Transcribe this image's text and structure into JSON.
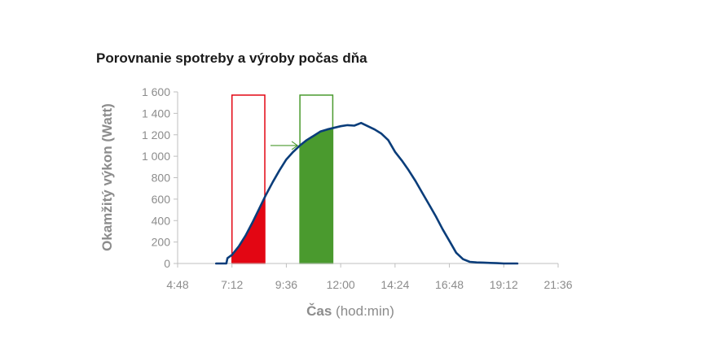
{
  "chart_data": {
    "type": "area",
    "title": "Porovnanie spotreby a výroby počas dňa",
    "xlabel_bold": "Čas",
    "xlabel_rest": " (hod:min)",
    "ylabel": "Okamžitý výkon (Watt)",
    "x_ticks": [
      "4:48",
      "7:12",
      "9:36",
      "12:00",
      "14:24",
      "16:48",
      "19:12",
      "21:36"
    ],
    "x_tick_hours": [
      4.8,
      7.2,
      9.6,
      12.0,
      14.4,
      16.8,
      19.2,
      21.6
    ],
    "y_ticks": [
      "0",
      "200",
      "400",
      "600",
      "800",
      "1 000",
      "1 200",
      "1 400",
      "1 600"
    ],
    "y_tick_values": [
      0,
      200,
      400,
      600,
      800,
      1000,
      1200,
      1400,
      1600
    ],
    "xlim_hours": [
      4.8,
      21.6
    ],
    "ylim": [
      0,
      1600
    ],
    "grid": false,
    "legend": "none",
    "series": [
      {
        "color": "#0a3d7a",
        "x_hours": [
          6.5,
          6.95,
          7.0,
          7.2,
          7.5,
          7.8,
          8.1,
          8.4,
          8.7,
          9.0,
          9.3,
          9.6,
          9.9,
          10.2,
          10.5,
          10.8,
          11.1,
          11.4,
          11.7,
          12.0,
          12.3,
          12.6,
          12.9,
          13.2,
          13.5,
          13.8,
          14.1,
          14.4,
          14.7,
          15.0,
          15.3,
          15.6,
          15.9,
          16.2,
          16.5,
          16.8,
          17.1,
          17.4,
          17.7,
          18.0,
          18.3,
          18.6,
          18.9,
          19.2,
          19.5,
          19.8
        ],
        "values": [
          0,
          0,
          50,
          80,
          160,
          260,
          380,
          510,
          640,
          760,
          870,
          970,
          1040,
          1100,
          1150,
          1190,
          1230,
          1250,
          1265,
          1280,
          1290,
          1285,
          1310,
          1280,
          1250,
          1210,
          1150,
          1040,
          960,
          870,
          770,
          660,
          550,
          440,
          320,
          210,
          100,
          40,
          15,
          10,
          8,
          5,
          3,
          0,
          0,
          0
        ]
      }
    ],
    "highlights": [
      {
        "color": "#e30613",
        "x_start_hours": 7.2,
        "x_end_hours": 8.65,
        "box_top_value": 1570,
        "fill_under_curve": true
      },
      {
        "color": "#4a9a2e",
        "x_start_hours": 10.2,
        "x_end_hours": 11.65,
        "box_top_value": 1570,
        "fill_under_curve": true
      }
    ],
    "arrow": {
      "color": "#4a9a2e",
      "from_hours": 8.9,
      "to_hours": 10.2,
      "at_value": 1100
    }
  }
}
